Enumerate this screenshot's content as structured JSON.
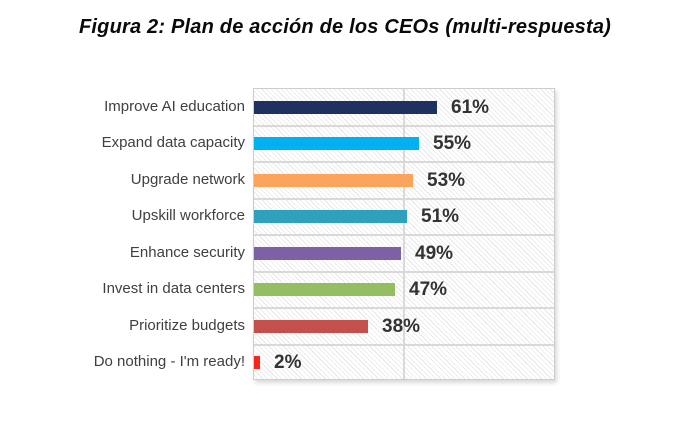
{
  "title": "Figura 2: Plan de acción de los CEOs (multi-respuesta)",
  "chart_data": {
    "type": "bar",
    "orientation": "horizontal",
    "title": "Figura 2: Plan de acción de los CEOs (multi-respuesta)",
    "categories": [
      "Improve AI education",
      "Expand data capacity",
      "Upgrade network",
      "Upskill workforce",
      "Enhance security",
      "Invest in data centers",
      "Prioritize budgets",
      "Do nothing - I'm ready!"
    ],
    "values": [
      61,
      55,
      53,
      51,
      49,
      47,
      38,
      2
    ],
    "value_labels": [
      "61%",
      "55%",
      "53%",
      "51%",
      "49%",
      "47%",
      "38%",
      "2%"
    ],
    "bar_colors": [
      "#1f3160",
      "#00b0f0",
      "#faa55b",
      "#2fa1be",
      "#7c62a5",
      "#95bd62",
      "#c4504b",
      "#f9261b"
    ],
    "xlim": [
      0,
      100
    ],
    "x_gridlines": [
      50
    ],
    "grid_color": "#d9d9d9",
    "plot_background": "diagonal-hatch",
    "hatch_color": "#e7e7e7",
    "label_color": "#404040",
    "value_label_color": "#333333",
    "legend": "none",
    "xlabel": "",
    "ylabel": ""
  }
}
